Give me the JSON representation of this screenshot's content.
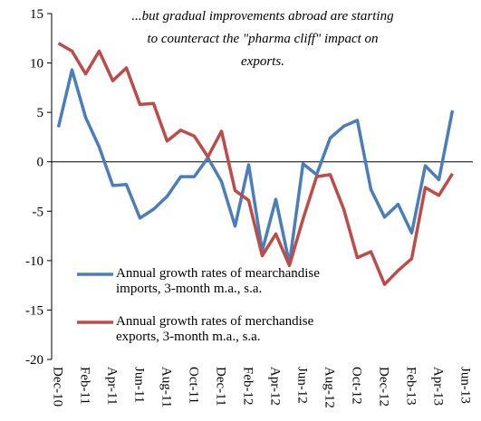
{
  "chart_data": {
    "type": "line",
    "title": [
      "...but gradual improvements abroad are starting",
      "to counteract the \"pharma cliff\" impact on",
      "exports."
    ],
    "categories": [
      "Dec-10",
      null,
      "Feb-11",
      null,
      "Apr-11",
      null,
      "Jun-11",
      null,
      "Aug-11",
      null,
      "Oct-11",
      null,
      "Dec-11",
      null,
      "Feb-12",
      null,
      "Apr-12",
      null,
      "Jun-12",
      null,
      "Aug-12",
      null,
      "Oct-12",
      null,
      "Dec-12",
      null,
      "Feb-13",
      null,
      "Apr-13",
      null,
      "Jun-13"
    ],
    "series": [
      {
        "name": "Annual growth rates of mearchandise imports, 3-month m.a., s.a.",
        "color": "#4a7ebb",
        "values": [
          3.5,
          9.3,
          4.5,
          1.5,
          -2.4,
          -2.3,
          -5.7,
          -4.8,
          -3.5,
          -1.5,
          -1.5,
          0.4,
          -2.0,
          -6.5,
          -0.3,
          -9.0,
          -3.8,
          -10.3,
          -0.2,
          -1.3,
          2.4,
          3.6,
          4.2,
          -2.8,
          -5.6,
          -4.3,
          -7.2,
          -0.4,
          -1.8,
          5.2,
          null
        ]
      },
      {
        "name": "Annual growth rates of merchandise exports, 3-month m.a., s.a.",
        "color": "#be4b48",
        "values": [
          12.0,
          11.2,
          8.9,
          11.2,
          8.2,
          9.5,
          5.8,
          5.9,
          2.1,
          3.2,
          2.6,
          0.5,
          3.1,
          -2.9,
          -3.9,
          -9.5,
          -7.3,
          -10.5,
          -5.8,
          -1.5,
          -1.3,
          -4.8,
          -9.7,
          -9.1,
          -12.4,
          -11.0,
          -9.8,
          -2.6,
          -3.4,
          -1.2,
          null
        ]
      }
    ],
    "ylim": [
      -20,
      15
    ],
    "yticks": [
      -20,
      -15,
      -10,
      -5,
      0,
      5,
      10,
      15
    ],
    "grid": false
  }
}
